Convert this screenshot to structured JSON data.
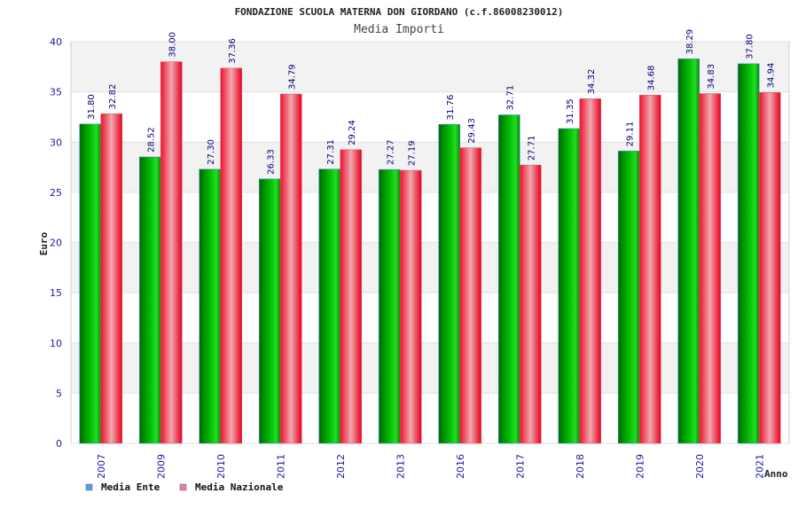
{
  "chart_data": {
    "type": "bar",
    "title": "FONDAZIONE SCUOLA MATERNA DON GIORDANO (c.f.86008230012)",
    "subtitle": "Media Importi",
    "xlabel": "Anno",
    "ylabel": "Euro",
    "ylim": [
      0,
      40
    ],
    "yticks": [
      0,
      5,
      10,
      15,
      20,
      25,
      30,
      35,
      40
    ],
    "grid": true,
    "legend_position": "bottom-left",
    "categories": [
      "2007",
      "2009",
      "2010",
      "2011",
      "2012",
      "2013",
      "2016",
      "2017",
      "2018",
      "2019",
      "2020",
      "2021"
    ],
    "series": [
      {
        "name": "Media Ente",
        "legend_color": "#5b9be6",
        "bar_color": "#16b216",
        "values": [
          31.8,
          28.52,
          27.3,
          26.33,
          27.31,
          27.27,
          31.76,
          32.71,
          31.35,
          29.11,
          38.29,
          37.8
        ],
        "labels": [
          "31.80",
          "28.52",
          "27.30",
          "26.33",
          "27.31",
          "27.27",
          "31.76",
          "32.71",
          "31.35",
          "29.11",
          "38.29",
          "37.80"
        ]
      },
      {
        "name": "Media Nazionale",
        "legend_color": "#e080b0",
        "bar_color": "#f0243a",
        "values": [
          32.82,
          38.0,
          37.36,
          34.79,
          29.24,
          27.19,
          29.43,
          27.71,
          34.32,
          34.68,
          34.83,
          34.94
        ],
        "labels": [
          "32.82",
          "38.00",
          "37.36",
          "34.79",
          "29.24",
          "27.19",
          "29.43",
          "27.71",
          "34.32",
          "34.68",
          "34.83",
          "34.94"
        ]
      }
    ]
  }
}
